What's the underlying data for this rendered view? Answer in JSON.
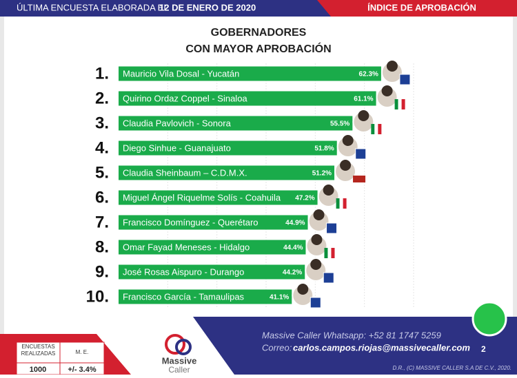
{
  "header": {
    "survey_text": "ÚLTIMA ENCUESTA ELABORADA EL",
    "date": "12 DE ENERO DE 2020",
    "section": "ÍNDICE DE APROBACIÓN"
  },
  "chart_data": {
    "type": "bar",
    "orientation": "horizontal",
    "title": [
      "GOBERNADORES",
      "CON MAYOR APROBACIÓN"
    ],
    "ranks": [
      "1.",
      "2.",
      "3.",
      "4.",
      "5.",
      "6.",
      "7.",
      "8.",
      "9.",
      "10."
    ],
    "categories": [
      "Mauricio Vila Dosal - Yucatán",
      "Quirino Ordaz Coppel - Sinaloa",
      "Claudia Pavlovich - Sonora",
      "Diego Sinhue - Guanajuato",
      "Claudia Sheinbaum – C.D.M.X.",
      "Miguel Ángel Riquelme Solís - Coahuila",
      "Francisco Domínguez - Querétaro",
      "Omar Fayad Meneses - Hidalgo",
      "José Rosas Aispuro - Durango",
      "Francisco García - Tamaulipas"
    ],
    "values": [
      62.3,
      61.1,
      55.5,
      51.8,
      51.2,
      47.2,
      44.9,
      44.4,
      44.2,
      41.1
    ],
    "value_labels": [
      "62.3%",
      "61.1%",
      "55.5%",
      "51.8%",
      "51.2%",
      "47.2%",
      "44.9%",
      "44.4%",
      "44.2%",
      "41.1%"
    ],
    "color": "#1aab4a",
    "xlim": [
      0,
      70
    ],
    "grid": true
  },
  "footer": {
    "whatsapp": "Massive Caller Whatsapp: +52   81 1747 5259",
    "email_label": "Correo:",
    "email": "carlos.campos.riojas@massivecaller.com",
    "page": "2",
    "rights": "D.R., (C) MASSIVE CALLER S.A DE C.V., 2020.",
    "logo": [
      "Massive",
      "Caller"
    ],
    "table": {
      "headers": [
        "ENCUESTAS REALIZADAS",
        "M. E."
      ],
      "row": [
        "1000",
        "+/- 3.4%"
      ]
    }
  }
}
